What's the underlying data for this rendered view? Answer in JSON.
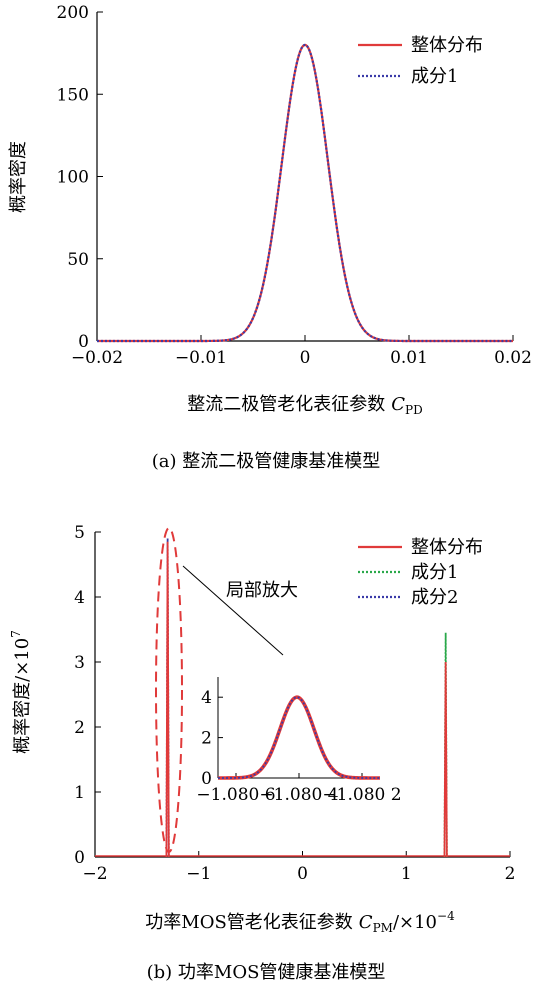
{
  "chart_data": [
    {
      "type": "line",
      "panel_caption": "(a) 整流二极管健康基准模型",
      "xlabel": "整流二极管老化表征参数",
      "xlabel_symbol": "C",
      "xlabel_sub": "PD",
      "ylabel": "概率密度",
      "xlim": [
        -0.02,
        0.02
      ],
      "ylim": [
        0,
        200
      ],
      "xticks": [
        -0.02,
        -0.01,
        0,
        0.01,
        0.02
      ],
      "xtick_labels": [
        "−0.02",
        "−0.01",
        "0",
        "0.01",
        "0.02"
      ],
      "yticks": [
        0,
        50,
        100,
        150,
        200
      ],
      "ytick_labels": [
        "0",
        "50",
        "100",
        "150",
        "200"
      ],
      "legend_position": "top-right",
      "series": [
        {
          "name": "整体分布",
          "color": "#e03a3a",
          "style": "solid",
          "distribution": "normal",
          "mean": 0,
          "peak": 180
        },
        {
          "name": "成分1",
          "color": "#3a3aa8",
          "style": "dotted",
          "distribution": "normal",
          "mean": 0,
          "peak": 180
        }
      ],
      "sigma": 0.00221
    },
    {
      "type": "line",
      "panel_caption": "(b) 功率MOS管健康基准模型",
      "xlabel": "功率MOS管老化表征参数",
      "xlabel_symbol": "C",
      "xlabel_sub": "PM",
      "xlabel_scale": "/×10",
      "xlabel_exp": "−4",
      "ylabel": "概率密度",
      "ylabel_scale": "/×10",
      "ylabel_exp": "7",
      "xlim": [
        -2,
        2
      ],
      "ylim": [
        0,
        5
      ],
      "xticks": [
        -2,
        -1,
        0,
        1,
        2
      ],
      "xtick_labels": [
        "−2",
        "−1",
        "0",
        "1",
        "2"
      ],
      "yticks": [
        0,
        1,
        2,
        3,
        4,
        5
      ],
      "ytick_labels": [
        "0",
        "1",
        "2",
        "3",
        "4",
        "5"
      ],
      "legend_position": "top-right",
      "series": [
        {
          "name": "整体分布",
          "color": "#e03a3a",
          "style": "solid",
          "spikes": [
            {
              "x": -1.3,
              "peak": 4.85
            },
            {
              "x": 1.38,
              "peak": 3.0
            }
          ]
        },
        {
          "name": "成分1",
          "color": "#2aa84a",
          "style": "dotted",
          "spikes": [
            {
              "x": 1.38,
              "peak": 3.45
            }
          ]
        },
        {
          "name": "成分2",
          "color": "#3a3aa8",
          "style": "dotted",
          "spikes": [
            {
              "x": -1.3,
              "peak": 4.9
            }
          ]
        }
      ],
      "annotation": "局部放大",
      "inset": {
        "xtick_labels": [
          "−1.080 6",
          "−1.080 4",
          "−1.080 2"
        ],
        "yticks": [
          0,
          2,
          4
        ],
        "ytick_labels": [
          "0",
          "2",
          "4"
        ],
        "ylim": [
          0,
          5
        ],
        "peak": 4.0
      }
    }
  ]
}
